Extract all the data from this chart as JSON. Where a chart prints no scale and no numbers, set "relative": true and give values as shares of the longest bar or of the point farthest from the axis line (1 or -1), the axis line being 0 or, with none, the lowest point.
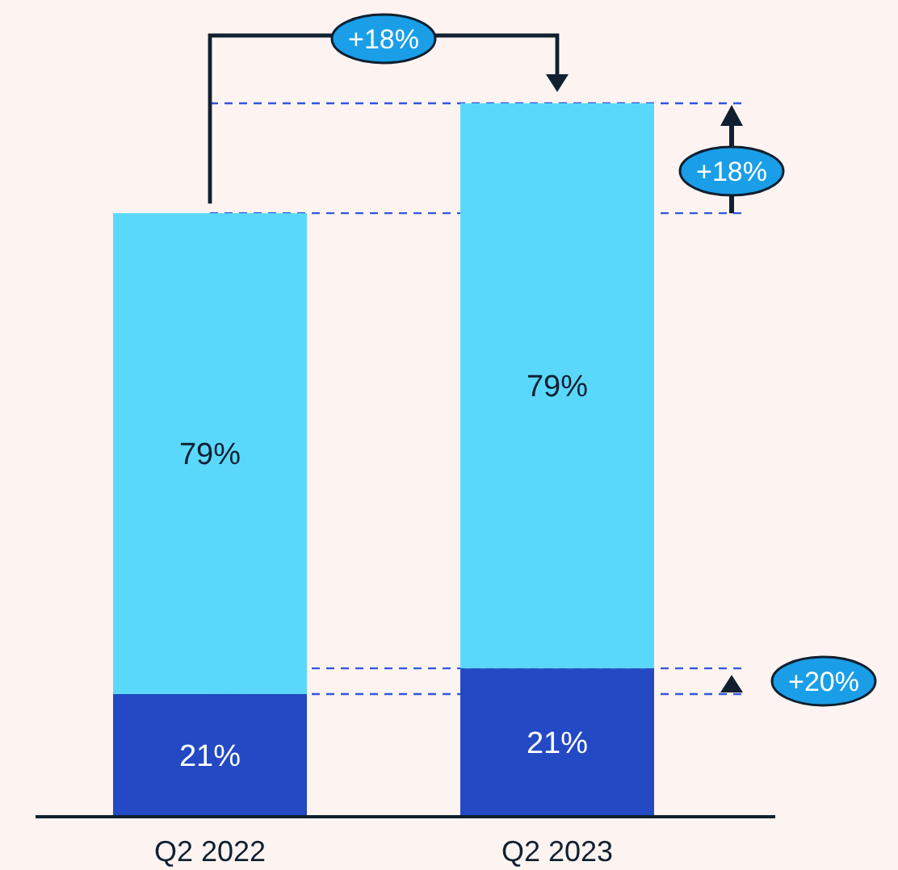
{
  "chart_data": {
    "type": "bar",
    "stacked": true,
    "relative": true,
    "categories": [
      "Q2 2022",
      "Q2 2023"
    ],
    "series": [
      {
        "color": "#2349c4",
        "values": [
          0.172,
          0.208
        ]
      },
      {
        "color": "#5ad8fc",
        "values": [
          0.674,
          0.792
        ]
      }
    ],
    "ref_lines": [
      {
        "axis": "y",
        "value": 0.846,
        "color": "#3355dd",
        "line_style": "dashed"
      },
      {
        "axis": "y",
        "value": 1,
        "color": "#3355dd",
        "line_style": "dashed"
      },
      {
        "axis": "y",
        "value": 0.172,
        "color": "#3355dd",
        "line_style": "dashed"
      },
      {
        "axis": "y",
        "value": 0.208,
        "color": "#3355dd",
        "line_style": "dashed"
      }
    ],
    "annotations": [
      "+18%",
      "+18%",
      "+20%",
      "21%",
      "79%",
      "21%",
      "79%"
    ]
  }
}
